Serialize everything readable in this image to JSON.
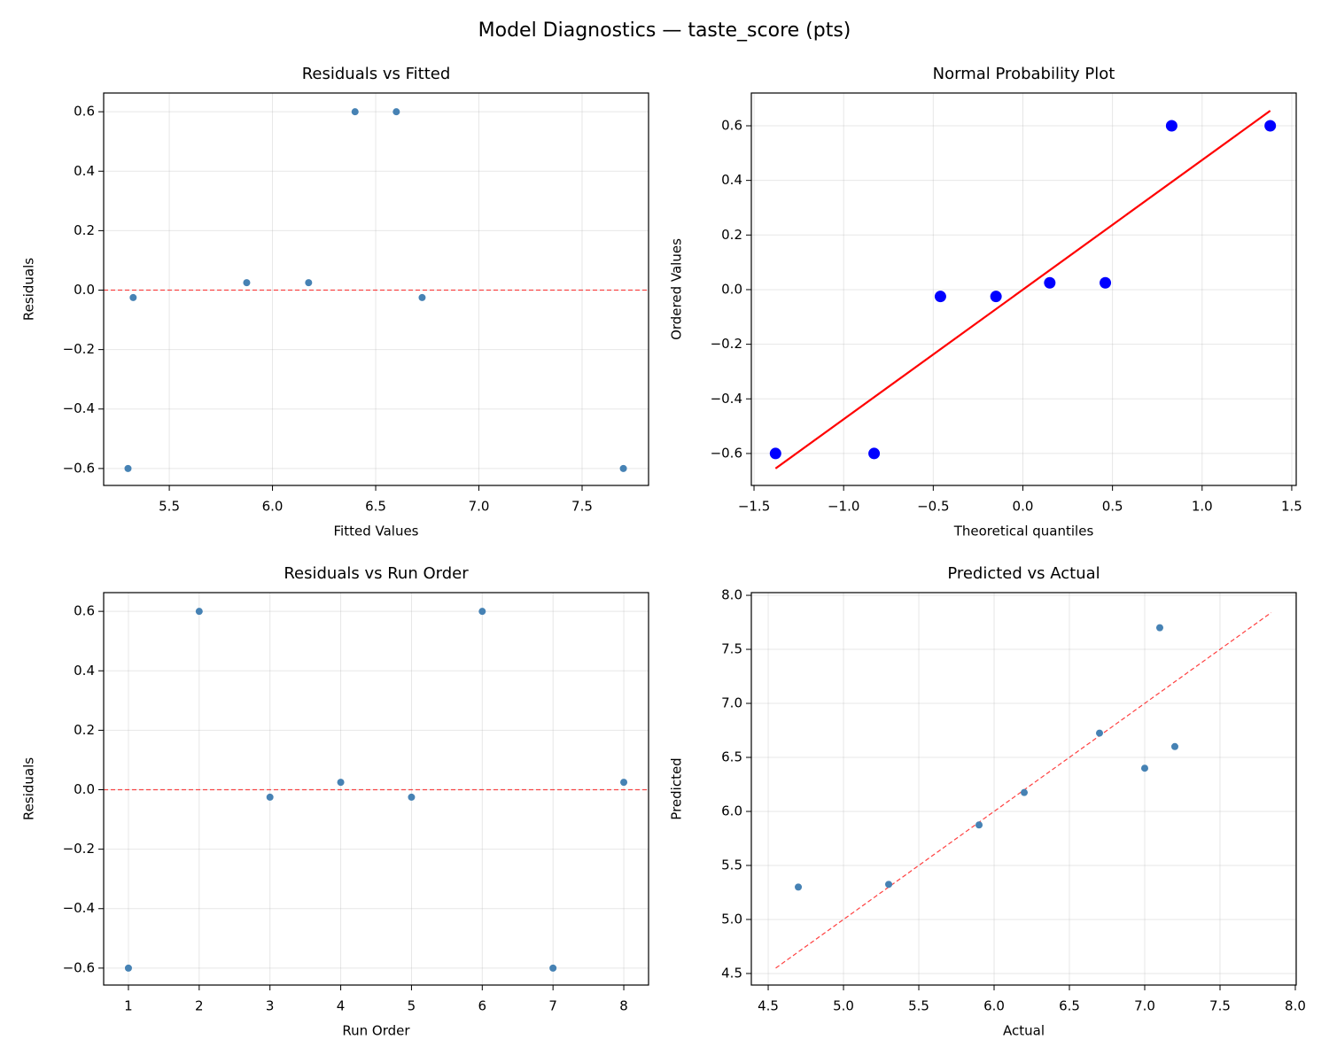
{
  "title": "Model Diagnostics — taste_score (pts)",
  "chart_data": [
    {
      "type": "scatter",
      "title": "Residuals vs Fitted",
      "xlabel": "Fitted Values",
      "ylabel": "Residuals",
      "x": [
        5.3,
        5.325,
        5.875,
        6.175,
        6.4,
        6.6,
        6.725,
        7.7
      ],
      "values": [
        -0.6,
        -0.025,
        0.025,
        0.025,
        0.6,
        0.6,
        -0.025,
        -0.6
      ],
      "color": "#4682b4",
      "marker_size": "small",
      "xlim": [
        5.182,
        7.822
      ],
      "ylim": [
        -0.657,
        0.663
      ],
      "xticks": [
        5.5,
        {
          "value": 6,
          "label": "6.0"
        },
        6.5,
        {
          "value": 7,
          "label": "7.0"
        },
        7.5
      ],
      "yticks": [
        {
          "value": -0.6,
          "label": "−0.6"
        },
        {
          "value": -0.4,
          "label": "−0.4"
        },
        {
          "value": -0.2,
          "label": "−0.2"
        },
        {
          "value": 0,
          "label": "0.0"
        },
        0.2,
        0.4,
        0.6
      ],
      "grid": true,
      "hline": {
        "y": 0,
        "color": "#ff0000",
        "style": "dashed"
      }
    },
    {
      "type": "scatter",
      "title": "Normal Probability Plot",
      "xlabel": "Theoretical quantiles",
      "ylabel": "Ordered Values",
      "x": [
        -1.38,
        -0.83,
        -0.46,
        -0.15,
        0.15,
        0.46,
        0.83,
        1.38
      ],
      "values": [
        -0.6,
        -0.6,
        -0.025,
        -0.025,
        0.025,
        0.025,
        0.6,
        0.6
      ],
      "color": "#0000ff",
      "marker_size": "large",
      "xlim": [
        -1.515,
        1.525
      ],
      "ylim": [
        -0.717,
        0.72
      ],
      "xticks": [
        {
          "value": -1.5,
          "label": "−1.5"
        },
        {
          "value": -1,
          "label": "−1.0"
        },
        {
          "value": -0.5,
          "label": "−0.5"
        },
        {
          "value": 0,
          "label": "0.0"
        },
        0.5,
        {
          "value": 1,
          "label": "1.0"
        },
        1.5
      ],
      "yticks": [
        {
          "value": -0.6,
          "label": "−0.6"
        },
        {
          "value": -0.4,
          "label": "−0.4"
        },
        {
          "value": -0.2,
          "label": "−0.2"
        },
        {
          "value": 0,
          "label": "0.0"
        },
        0.2,
        0.4,
        0.6
      ],
      "grid": true,
      "line": {
        "x": [
          -1.38,
          1.38
        ],
        "values": [
          -0.655,
          0.655
        ],
        "color": "#ff0000",
        "style": "solid"
      }
    },
    {
      "type": "scatter",
      "title": "Residuals vs Run Order",
      "xlabel": "Run Order",
      "ylabel": "Residuals",
      "x": [
        1,
        2,
        3,
        4,
        5,
        6,
        7,
        8
      ],
      "values": [
        -0.6,
        0.6,
        -0.025,
        0.025,
        -0.025,
        0.6,
        -0.6,
        0.025
      ],
      "color": "#4682b4",
      "marker_size": "small",
      "xlim": [
        0.65,
        8.35
      ],
      "ylim": [
        -0.657,
        0.663
      ],
      "xticks": [
        1,
        2,
        3,
        4,
        5,
        6,
        7,
        8
      ],
      "yticks": [
        {
          "value": -0.6,
          "label": "−0.6"
        },
        {
          "value": -0.4,
          "label": "−0.4"
        },
        {
          "value": -0.2,
          "label": "−0.2"
        },
        {
          "value": 0,
          "label": "0.0"
        },
        0.2,
        0.4,
        0.6
      ],
      "grid": true,
      "hline": {
        "y": 0,
        "color": "#ff0000",
        "style": "dashed"
      }
    },
    {
      "type": "scatter",
      "title": "Predicted vs Actual",
      "xlabel": "Actual",
      "ylabel": "Predicted",
      "x": [
        4.7,
        5.3,
        5.9,
        6.2,
        6.7,
        7.0,
        7.1,
        7.2
      ],
      "values": [
        5.3,
        5.325,
        5.875,
        6.175,
        6.725,
        6.4,
        7.7,
        6.6
      ],
      "color": "#4682b4",
      "marker_size": "small",
      "xlim": [
        4.388,
        8.006
      ],
      "ylim": [
        4.393,
        8.025
      ],
      "xticks": [
        4.5,
        {
          "value": 5,
          "label": "5.0"
        },
        5.5,
        {
          "value": 6,
          "label": "6.0"
        },
        6.5,
        {
          "value": 7,
          "label": "7.0"
        },
        7.5,
        {
          "value": 8,
          "label": "8.0"
        }
      ],
      "yticks": [
        4.5,
        {
          "value": 5,
          "label": "5.0"
        },
        5.5,
        {
          "value": 6,
          "label": "6.0"
        },
        6.5,
        {
          "value": 7,
          "label": "7.0"
        },
        7.5,
        {
          "value": 8,
          "label": "8.0"
        }
      ],
      "grid": true,
      "line": {
        "x": [
          4.55,
          7.84
        ],
        "values": [
          4.55,
          7.84
        ],
        "color": "#ff0000",
        "style": "dashed"
      }
    }
  ]
}
